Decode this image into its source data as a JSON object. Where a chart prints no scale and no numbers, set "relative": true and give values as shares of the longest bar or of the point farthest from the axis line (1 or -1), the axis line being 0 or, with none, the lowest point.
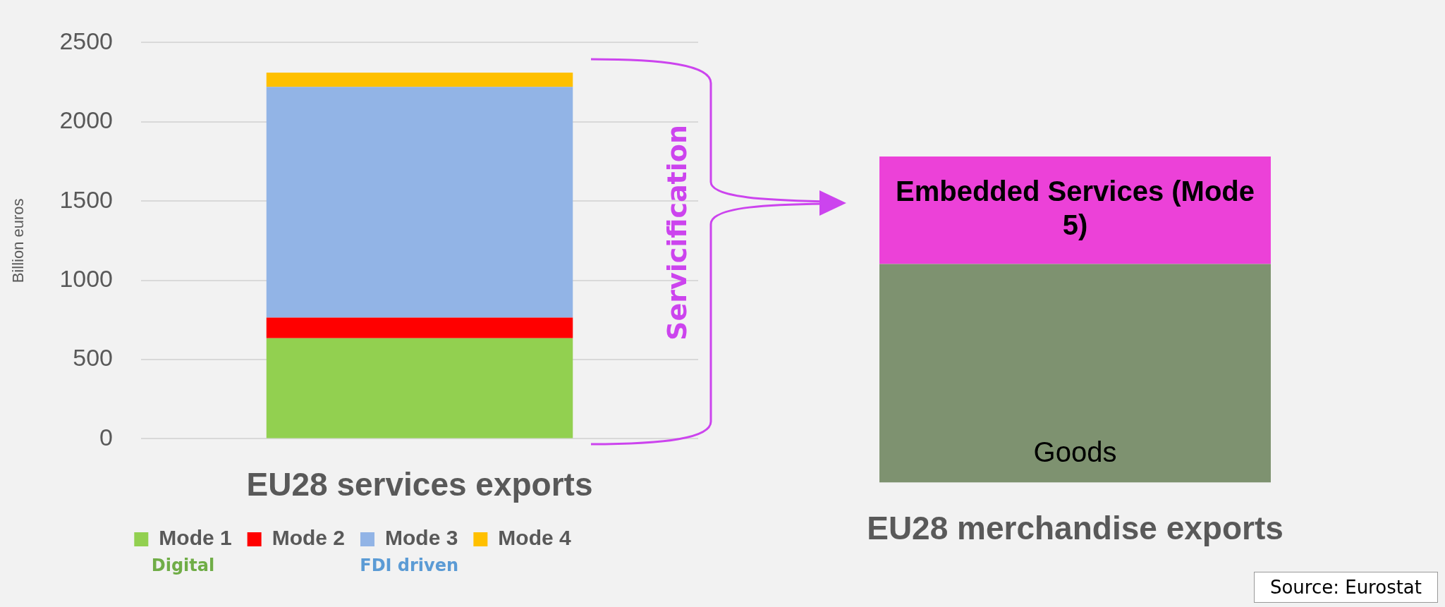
{
  "chart_data": [
    {
      "type": "bar",
      "stacked": true,
      "categories": [
        null
      ],
      "xlabel": "EU28 services exports",
      "ylabel": "Billion euros",
      "ylim": [
        0,
        2500
      ],
      "yticks": [
        0,
        500,
        1000,
        1500,
        2000,
        2500
      ],
      "grid": "y",
      "legend": "bottom",
      "annotations": [
        "Digital",
        "FDI driven"
      ],
      "series": [
        {
          "name": "Mode 1",
          "color": "#92d050",
          "values": [
            635
          ]
        },
        {
          "name": "Mode 2",
          "color": "#ff0000",
          "values": [
            130
          ]
        },
        {
          "name": "Mode 3",
          "color": "#92b4e6",
          "values": [
            1455
          ]
        },
        {
          "name": "Mode 4",
          "color": "#ffc000",
          "values": [
            90
          ]
        }
      ]
    },
    {
      "type": "bar",
      "stacked": true,
      "relative": true,
      "categories": [
        null
      ],
      "xlabel": "EU28 merchandise exports",
      "annotations": [
        "Servicification",
        "Source: Eurostat"
      ],
      "series": [
        {
          "name": "Goods",
          "color": "#7e9270",
          "values": [
            0.67
          ]
        },
        {
          "name": "Embedded Services (Mode 5)",
          "color": "#ec41d8",
          "values": [
            0.33
          ]
        }
      ]
    }
  ]
}
